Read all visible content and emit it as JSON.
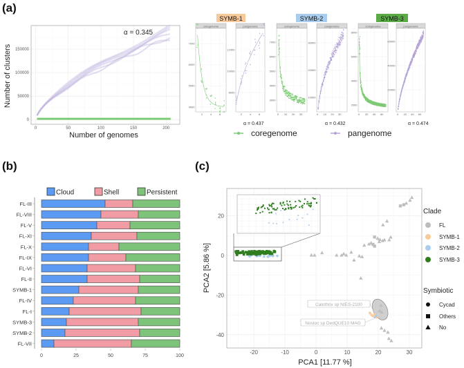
{
  "panels": {
    "a": "(a)",
    "b": "(b)",
    "c": "(c)"
  },
  "chart_data": [
    {
      "id": "a_main",
      "type": "line",
      "xlabel": "Number of genomes",
      "ylabel": "Number of clusters",
      "xlim": [
        -7,
        221
      ],
      "ylim": [
        -10000,
        200000
      ],
      "xticks": [
        0,
        50,
        100,
        150,
        200
      ],
      "yticks": [
        0,
        50000,
        100000,
        150000
      ],
      "annotation": "α = 0.345",
      "grid": true,
      "series": [
        {
          "name": "pangenome",
          "color": "#c4b6e0",
          "n_start": 2,
          "n_end": 207,
          "model": {
            "form": "power",
            "a": 5623,
            "g": 0.655
          }
        },
        {
          "name": "coregenome",
          "color": "#7ccb74",
          "n_start": 2,
          "n_end": 207,
          "value": 1500
        }
      ]
    },
    {
      "id": "a_clades",
      "type": "scatter",
      "legend": [
        {
          "name": "coregenome",
          "color": "#7ccb74"
        },
        {
          "name": "pangenome",
          "color": "#b3a3d6"
        }
      ],
      "clades": [
        {
          "name": "SYMB-1",
          "color": "#f8c99a",
          "alpha": "α = 0.437",
          "core": {
            "title": "coregenome",
            "n": [
              1,
              7
            ],
            "xlim": [
              0.6,
              7.4
            ],
            "ylim": [
              3770,
              7720
            ],
            "xticks": [
              2,
              4,
              6
            ],
            "yticks": [
              4000,
              5000,
              6000,
              7000
            ],
            "model": {
              "form": "exp",
              "c": 4000,
              "b": 3400,
              "k": 0.9
            },
            "spread": 0.08
          },
          "pan": {
            "title": "pangenome",
            "n": [
              1,
              7
            ],
            "xlim": [
              0.8,
              7.2
            ],
            "ylim": [
              6200,
              14000
            ],
            "xticks": [
              2,
              4,
              6
            ],
            "yticks": [
              8000,
              10000,
              12000
            ],
            "model": {
              "form": "power",
              "a": 7200,
              "g": 0.33
            },
            "spread": 0.07
          }
        },
        {
          "name": "SYMB-2",
          "color": "#a9cdee",
          "alpha": "α = 0.432",
          "core": {
            "title": "coregenome",
            "n": [
              1,
              35
            ],
            "xlim": [
              -1.8,
              38
            ],
            "ylim": [
              2190,
              7950
            ],
            "xticks": [
              0,
              10,
              20,
              30
            ],
            "yticks": [
              3000,
              4000,
              5000,
              6000,
              7000
            ],
            "model": {
              "form": "power_decay",
              "c": 2200,
              "b": 5000,
              "k": 0.55
            },
            "spread": 0.07
          },
          "pan": {
            "title": "pangenome",
            "n": [
              1,
              35
            ],
            "xlim": [
              -1,
              40
            ],
            "ylim": [
              4700,
              35300
            ],
            "xticks": [
              0,
              10,
              20,
              30
            ],
            "yticks": [
              10000,
              20000,
              30000
            ],
            "model": {
              "form": "power",
              "a": 6000,
              "g": 0.48
            },
            "spread": 0.06
          }
        },
        {
          "name": "SYMB-3",
          "color": "#5aaa46",
          "alpha": "α = 0.474",
          "core": {
            "title": "coregenome",
            "n": [
              1,
              70
            ],
            "xlim": [
              -2,
              76
            ],
            "ylim": [
              1430,
              8340
            ],
            "xticks": [
              0,
              20,
              40,
              60
            ],
            "yticks": [
              2000,
              4000,
              6000,
              8000
            ],
            "model": {
              "form": "power_decay",
              "c": 1500,
              "b": 5800,
              "k": 0.6
            },
            "spread": 0.06
          },
          "pan": {
            "title": "pangenome",
            "n": [
              1,
              70
            ],
            "xlim": [
              -4,
              75
            ],
            "ylim": [
              1700,
              70900
            ],
            "xticks": [
              0,
              20,
              40,
              60
            ],
            "yticks": [
              20000,
              40000,
              60000
            ],
            "model": {
              "form": "power",
              "a": 4000,
              "g": 0.66
            },
            "spread": 0.04
          }
        }
      ]
    },
    {
      "id": "b",
      "type": "bar",
      "orientation": "horizontal-stacked",
      "xlim": [
        0,
        100
      ],
      "xticks": [
        0,
        25,
        50,
        75,
        100
      ],
      "legend_position": "top",
      "categories": [
        "FL-III",
        "FL-VIII",
        "FL-V",
        "FL-XI",
        "FL-X",
        "FL-IX",
        "FL-VI",
        "FL-II",
        "SYMB-1",
        "FL-IV",
        "FL-I",
        "SYMB-3",
        "SYMB-2",
        "FL-VII"
      ],
      "series": [
        {
          "name": "Cloud",
          "color": "#5b9bf3",
          "values": [
            46,
            43,
            40,
            36,
            34,
            34,
            33,
            33,
            27,
            23,
            20,
            18,
            17,
            9
          ]
        },
        {
          "name": "Shell",
          "color": "#f19ba4",
          "values": [
            20,
            27,
            24,
            33,
            22,
            27,
            35,
            38,
            43,
            45,
            52,
            52,
            54,
            56
          ]
        },
        {
          "name": "Persistent",
          "color": "#7dc47a",
          "values": [
            34,
            30,
            36,
            31,
            44,
            39,
            32,
            29,
            30,
            32,
            28,
            30,
            29,
            35
          ]
        }
      ]
    },
    {
      "id": "c",
      "type": "scatter",
      "xlabel": "PCA1 [11.77 %]",
      "ylabel": "PCA2 [5.86 %]",
      "xlim": [
        -28.7,
        34
      ],
      "ylim": [
        -46.7,
        33.8
      ],
      "xticks": [
        -20,
        -10,
        0,
        10,
        20,
        30
      ],
      "yticks": [
        -40,
        -20,
        0,
        20
      ],
      "grid": true,
      "legend_position": "right",
      "legend_clade_title": "Clade",
      "legend_symbiotic_title": "Symbiotic",
      "clades": [
        {
          "name": "FL",
          "color": "#bdbdbd"
        },
        {
          "name": "SYMB-1",
          "color": "#f8c99a"
        },
        {
          "name": "SYMB-2",
          "color": "#a9cdee"
        },
        {
          "name": "SYMB-3",
          "color": "#2f7d1f"
        }
      ],
      "shapes": [
        {
          "name": "Cycad",
          "shape": "circle"
        },
        {
          "name": "Others",
          "shape": "square"
        },
        {
          "name": "No",
          "shape": "triangle"
        }
      ],
      "points_FL": [
        [
          27.1,
          25,
          "square"
        ],
        [
          28.2,
          25.6,
          "square"
        ],
        [
          29,
          26.4,
          "triangle"
        ],
        [
          30.2,
          27.9,
          "triangle"
        ],
        [
          30.8,
          29.3,
          "triangle"
        ],
        [
          21.5,
          15.5,
          "triangle"
        ],
        [
          22.8,
          17.4,
          "triangle"
        ],
        [
          18.8,
          9.3,
          "square"
        ],
        [
          19.8,
          8.7,
          "triangle"
        ],
        [
          20.5,
          8.1,
          "triangle"
        ],
        [
          22,
          7.9,
          "triangle"
        ],
        [
          23.5,
          7.9,
          "triangle"
        ],
        [
          24,
          9.3,
          "triangle"
        ],
        [
          15.5,
          5.2,
          "triangle"
        ],
        [
          17,
          5.8,
          "triangle"
        ],
        [
          17.7,
          6.4,
          "triangle"
        ],
        [
          18.8,
          4.7,
          "square"
        ],
        [
          20.3,
          7,
          "triangle"
        ],
        [
          18.3,
          5.6,
          "square"
        ],
        [
          21.4,
          7.5,
          "triangle"
        ],
        [
          -1.5,
          0.2,
          "triangle"
        ],
        [
          -0.5,
          0.2,
          "triangle"
        ],
        [
          1.9,
          1.4,
          "triangle"
        ],
        [
          6.6,
          0.2,
          "triangle"
        ],
        [
          8.2,
          0.2,
          "triangle"
        ],
        [
          8.9,
          0.9,
          "triangle"
        ],
        [
          9.7,
          0.2,
          "triangle"
        ],
        [
          11.3,
          1.7,
          "triangle"
        ],
        [
          12.2,
          -2.3,
          "triangle"
        ],
        [
          13.9,
          -0.2,
          "triangle"
        ],
        [
          14.8,
          -0.6,
          "triangle"
        ],
        [
          14.4,
          -11.4,
          "triangle"
        ],
        [
          20.9,
          -25.2,
          "triangle"
        ],
        [
          20.4,
          -27.9,
          "triangle"
        ],
        [
          21.1,
          -28.5,
          "triangle"
        ],
        [
          21,
          -36.6,
          "triangle"
        ],
        [
          22,
          -37.8,
          "triangle"
        ],
        [
          23.1,
          -38.7,
          "triangle"
        ],
        [
          23.4,
          -41.9,
          "triangle"
        ],
        [
          24.2,
          -43,
          "triangle"
        ]
      ],
      "points_SYMB1": [
        [
          17.3,
          -29,
          "circle"
        ],
        [
          17.8,
          -30,
          "circle"
        ],
        [
          18.3,
          -30.6,
          "circle"
        ],
        [
          19.6,
          -31.2,
          "circle"
        ],
        [
          18.8,
          -29.8,
          "circle"
        ]
      ],
      "points_SYMB2": [
        [
          18.9,
          -31.1,
          "circle"
        ],
        [
          19.3,
          -30.5,
          "circle"
        ]
      ],
      "cluster_SYMB3": {
        "x": [
          -26,
          -13
        ],
        "y": [
          0.3,
          2.2
        ],
        "n": 70,
        "shape": "square"
      },
      "cluster_SYMB2": {
        "x": [
          -22,
          -12
        ],
        "y": [
          -0.8,
          0.2
        ],
        "n": 18,
        "shape": "circle"
      },
      "highlight_ellipse": {
        "center": [
          20.6,
          -27.3
        ]
      },
      "annotations": [
        "Calothrix sp NIES-2100",
        "Nostoc sp DedQUE10 MAG"
      ]
    }
  ]
}
